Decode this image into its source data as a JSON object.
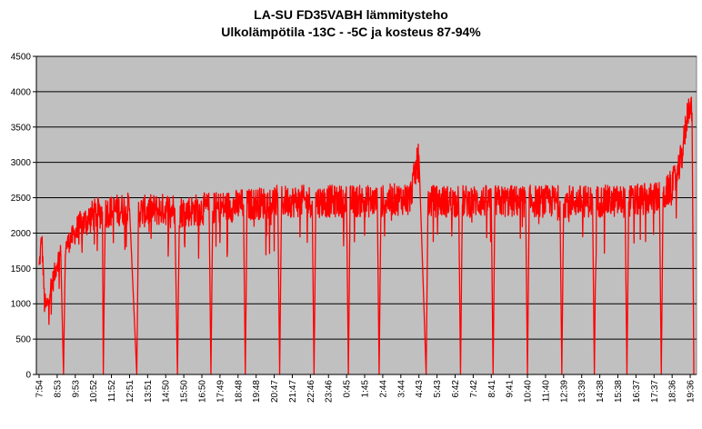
{
  "chart_data": {
    "type": "line",
    "title": "LA-SU FD35VABH lämmitysteho",
    "subtitle": "Ulkolämpötila  -13C - -5C ja kosteus 87-94%",
    "xlabel": "",
    "ylabel": "",
    "ylim": [
      0,
      4500
    ],
    "yticks": [
      0,
      500,
      1000,
      1500,
      2000,
      2500,
      3000,
      3500,
      4000,
      4500
    ],
    "x_tick_labels": [
      "7:54",
      "8:53",
      "9:53",
      "10:52",
      "11:52",
      "12:51",
      "13:51",
      "14:50",
      "15:50",
      "16:50",
      "17:49",
      "18:48",
      "19:48",
      "20:47",
      "21:47",
      "22:46",
      "23:46",
      "0:45",
      "1:45",
      "2:44",
      "3:44",
      "4:43",
      "5:43",
      "6:42",
      "7:42",
      "8:41",
      "9:41",
      "10:40",
      "11:40",
      "12:39",
      "13:39",
      "14:38",
      "15:38",
      "16:37",
      "17:37",
      "18:36",
      "19:36"
    ],
    "grid": "horizontal",
    "plot_background": "#c0c0c0",
    "series": [
      {
        "color": "#ff0000",
        "description_points": [
          {
            "t": 0.0,
            "v": 1500
          },
          {
            "t": 0.15,
            "v": 1950
          },
          {
            "t": 0.3,
            "v": 1000
          },
          {
            "t": 0.45,
            "v": 950
          },
          {
            "t": 0.6,
            "v": 1200
          },
          {
            "t": 0.8,
            "v": 1350
          },
          {
            "t": 1.0,
            "v": 1600
          },
          {
            "t": 1.2,
            "v": 1700
          },
          {
            "t": 1.35,
            "v": 0
          },
          {
            "t": 1.45,
            "v": 1800
          },
          {
            "t": 1.7,
            "v": 1900
          },
          {
            "t": 2.0,
            "v": 2000
          },
          {
            "t": 2.5,
            "v": 2150
          },
          {
            "t": 3.0,
            "v": 2250
          },
          {
            "t": 3.5,
            "v": 2300
          },
          {
            "t": 3.55,
            "v": 0
          },
          {
            "t": 3.65,
            "v": 2300
          },
          {
            "t": 5.0,
            "v": 2350
          },
          {
            "t": 5.4,
            "v": 0
          },
          {
            "t": 5.5,
            "v": 2300
          },
          {
            "t": 7.5,
            "v": 2350
          },
          {
            "t": 7.65,
            "v": 0
          },
          {
            "t": 7.75,
            "v": 2300
          },
          {
            "t": 9.4,
            "v": 2350
          },
          {
            "t": 9.5,
            "v": 0
          },
          {
            "t": 9.6,
            "v": 2350
          },
          {
            "t": 11.3,
            "v": 2400
          },
          {
            "t": 11.4,
            "v": 0
          },
          {
            "t": 11.5,
            "v": 2400
          },
          {
            "t": 13.2,
            "v": 2450
          },
          {
            "t": 13.3,
            "v": 0
          },
          {
            "t": 13.4,
            "v": 2450
          },
          {
            "t": 15.1,
            "v": 2450
          },
          {
            "t": 15.2,
            "v": 0
          },
          {
            "t": 15.3,
            "v": 2450
          },
          {
            "t": 17.0,
            "v": 2450
          },
          {
            "t": 17.1,
            "v": 0
          },
          {
            "t": 17.2,
            "v": 2450
          },
          {
            "t": 18.7,
            "v": 2450
          },
          {
            "t": 18.8,
            "v": 0
          },
          {
            "t": 18.9,
            "v": 2450
          },
          {
            "t": 20.5,
            "v": 2500
          },
          {
            "t": 21.0,
            "v": 3100
          },
          {
            "t": 21.4,
            "v": 0
          },
          {
            "t": 21.5,
            "v": 2450
          },
          {
            "t": 23.2,
            "v": 2450
          },
          {
            "t": 23.3,
            "v": 0
          },
          {
            "t": 23.4,
            "v": 2450
          },
          {
            "t": 25.0,
            "v": 2450
          },
          {
            "t": 25.1,
            "v": 0
          },
          {
            "t": 25.2,
            "v": 2450
          },
          {
            "t": 26.9,
            "v": 2450
          },
          {
            "t": 27.0,
            "v": 0
          },
          {
            "t": 27.1,
            "v": 2450
          },
          {
            "t": 28.8,
            "v": 2450
          },
          {
            "t": 28.9,
            "v": 0
          },
          {
            "t": 29.0,
            "v": 2450
          },
          {
            "t": 30.6,
            "v": 2450
          },
          {
            "t": 30.7,
            "v": 0
          },
          {
            "t": 30.8,
            "v": 2450
          },
          {
            "t": 32.4,
            "v": 2450
          },
          {
            "t": 32.5,
            "v": 0
          },
          {
            "t": 32.6,
            "v": 2450
          },
          {
            "t": 34.3,
            "v": 2500
          },
          {
            "t": 34.4,
            "v": 0
          },
          {
            "t": 34.5,
            "v": 2500
          },
          {
            "t": 35.3,
            "v": 2800
          },
          {
            "t": 35.6,
            "v": 3200
          },
          {
            "t": 35.8,
            "v": 3600
          },
          {
            "t": 35.95,
            "v": 3850
          },
          {
            "t": 36.1,
            "v": 3700
          },
          {
            "t": 36.2,
            "v": 0
          }
        ]
      }
    ]
  }
}
